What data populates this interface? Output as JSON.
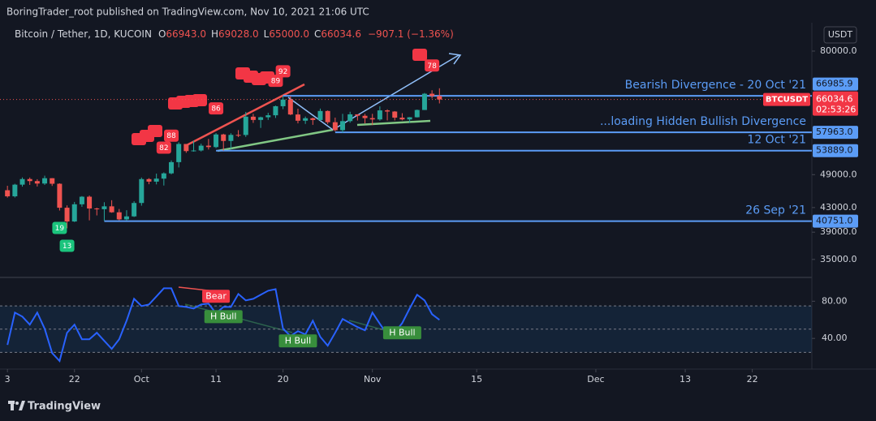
{
  "header": {
    "publisher": "BoringTrader_root published on TradingView.com, Nov 10, 2021 21:06 UTC",
    "brand": "TradingView"
  },
  "chart_data": [
    {
      "type": "candlestick",
      "symbol": "Bitcoin / Tether, 1D, KUCOIN",
      "legend": [
        {
          "key": "O",
          "value": "66943.0"
        },
        {
          "key": "H",
          "value": "69028.0"
        },
        {
          "key": "L",
          "value": "65000.0"
        },
        {
          "key": "C",
          "value": "66034.6"
        }
      ],
      "change": "−907.1 (−1.36%)",
      "currency": "USDT",
      "ticker": "BTCUSDT",
      "last_price": 66034.6,
      "countdown": "02:53:26",
      "x": [
        "2021-09-13",
        "2021-09-14",
        "2021-09-15",
        "2021-09-16",
        "2021-09-17",
        "2021-09-18",
        "2021-09-19",
        "2021-09-20",
        "2021-09-21",
        "2021-09-22",
        "2021-09-23",
        "2021-09-24",
        "2021-09-25",
        "2021-09-26",
        "2021-09-27",
        "2021-09-28",
        "2021-09-29",
        "2021-09-30",
        "2021-10-01",
        "2021-10-02",
        "2021-10-03",
        "2021-10-04",
        "2021-10-05",
        "2021-10-06",
        "2021-10-07",
        "2021-10-08",
        "2021-10-09",
        "2021-10-10",
        "2021-10-11",
        "2021-10-12",
        "2021-10-13",
        "2021-10-14",
        "2021-10-15",
        "2021-10-16",
        "2021-10-17",
        "2021-10-18",
        "2021-10-19",
        "2021-10-20",
        "2021-10-21",
        "2021-10-22",
        "2021-10-23",
        "2021-10-24",
        "2021-10-25",
        "2021-10-26",
        "2021-10-27",
        "2021-10-28",
        "2021-10-29",
        "2021-10-30",
        "2021-10-31",
        "2021-11-01",
        "2021-11-02",
        "2021-11-03",
        "2021-11-04",
        "2021-11-05",
        "2021-11-06",
        "2021-11-07",
        "2021-11-08",
        "2021-11-09",
        "2021-11-10"
      ],
      "open": [
        46060,
        44960,
        47090,
        48150,
        47760,
        47300,
        48310,
        47260,
        42970,
        40690,
        43560,
        44890,
        42840,
        42720,
        43210,
        42200,
        41030,
        41520,
        43790,
        48140,
        47660,
        48230,
        49250,
        51490,
        55340,
        53800,
        53930,
        54970,
        54660,
        57470,
        56010,
        57370,
        57350,
        61670,
        60880,
        61530,
        62010,
        64280,
        66000,
        62210,
        60690,
        61290,
        60860,
        63080,
        60330,
        58460,
        60590,
        62250,
        61890,
        61320,
        61000,
        63230,
        62940,
        61430,
        61000,
        61530,
        63330,
        67550,
        66943
      ],
      "high": [
        46880,
        47250,
        48460,
        48440,
        48120,
        48800,
        48330,
        47340,
        43370,
        43970,
        45000,
        45110,
        42980,
        43920,
        44270,
        42760,
        42550,
        44090,
        48440,
        48320,
        49200,
        49440,
        51850,
        55710,
        55330,
        56060,
        55400,
        56460,
        57780,
        57630,
        57750,
        58470,
        62840,
        62360,
        61680,
        62640,
        64440,
        66930,
        66940,
        63640,
        61710,
        61440,
        63680,
        63220,
        61440,
        62370,
        62880,
        62180,
        62350,
        62370,
        64240,
        63500,
        63050,
        62530,
        61570,
        63440,
        67760,
        68480,
        69028
      ],
      "low": [
        44730,
        44750,
        46720,
        47040,
        46750,
        47040,
        46850,
        42500,
        39600,
        40600,
        43130,
        40870,
        41680,
        40810,
        42120,
        40890,
        40830,
        41420,
        43320,
        47170,
        47140,
        46930,
        49060,
        50420,
        53440,
        53680,
        53710,
        54140,
        54440,
        53900,
        54290,
        56880,
        56920,
        60170,
        58980,
        60880,
        61350,
        63540,
        62050,
        60050,
        59920,
        59700,
        60690,
        59890,
        58200,
        57880,
        60210,
        60740,
        60060,
        59640,
        60700,
        60760,
        60760,
        60780,
        60170,
        61470,
        63330,
        66310,
        65000
      ],
      "close": [
        44960,
        47090,
        48150,
        47760,
        47300,
        48310,
        47260,
        42970,
        40690,
        43560,
        44890,
        42840,
        42720,
        43210,
        42200,
        41030,
        41520,
        43790,
        48140,
        47660,
        48230,
        49250,
        51490,
        55340,
        53800,
        53930,
        54970,
        54660,
        57470,
        56010,
        57370,
        57350,
        61670,
        60880,
        61530,
        62010,
        64280,
        66000,
        62210,
        60690,
        61290,
        60860,
        63080,
        60330,
        58460,
        60590,
        62250,
        61890,
        61320,
        61000,
        63230,
        62940,
        61430,
        61000,
        61530,
        63330,
        67550,
        66940,
        66034.6
      ],
      "xlim": [
        "2021-09-12",
        "2021-12-30"
      ],
      "xticks": [
        {
          "value": "2021-09-13",
          "label": "3"
        },
        {
          "value": "2021-09-22",
          "label": "22"
        },
        {
          "value": "2021-10-01",
          "label": "Oct"
        },
        {
          "value": "2021-10-11",
          "label": "11"
        },
        {
          "value": "2021-10-20",
          "label": "20"
        },
        {
          "value": "2021-11-01",
          "label": "Nov"
        },
        {
          "value": "2021-11-15",
          "label": "15"
        },
        {
          "value": "2021-12-01",
          "label": "Dec"
        },
        {
          "value": "2021-12-13",
          "label": "13"
        },
        {
          "value": "2021-12-22",
          "label": "22"
        }
      ],
      "ylim": [
        32800,
        88960
      ],
      "yticks": [
        {
          "value": 80000,
          "label": "80000.0"
        },
        {
          "value": 49000,
          "label": "49000.0"
        },
        {
          "value": 43000,
          "label": "43000.0"
        },
        {
          "value": 39000,
          "label": "39000.0"
        },
        {
          "value": 35000,
          "label": "35000.0"
        }
      ],
      "log_scale": true,
      "grid": false,
      "up_color": "#26a69a",
      "down_color": "#ef5350",
      "levels": [
        {
          "price": 66985.9,
          "text": "Bearish Divergence - 20 Oct '21",
          "from": "2021-10-20"
        },
        {
          "price": {
            "value": 57963,
            "label": "57963.0"
          },
          "text": "...loading Hidden Bullish Divergence",
          "from": "2021-10-27"
        },
        {
          "price": {
            "value": 53889,
            "label": "53889.0"
          },
          "text": "12 Oct '21",
          "from": "2021-10-11"
        },
        {
          "price": {
            "value": 40751,
            "label": "40751.0"
          },
          "text": "26 Sep '21",
          "from": "2021-09-26"
        }
      ],
      "level_color": "#5b9cf6",
      "signals": [
        {
          "label": "82",
          "date": "2021-10-04",
          "side": "above",
          "color": "#f23645"
        },
        {
          "label": "88",
          "date": "2021-10-05",
          "side": "above",
          "color": "#f23645"
        },
        {
          "label": "86",
          "date": "2021-10-11",
          "side": "above",
          "color": "#f23645"
        },
        {
          "label": "89",
          "date": "2021-10-19",
          "side": "above",
          "color": "#f23645"
        },
        {
          "label": "92",
          "date": "2021-10-20",
          "side": "above",
          "color": "#f23645"
        },
        {
          "label": "78",
          "date": "2021-11-09",
          "side": "above",
          "color": "#f23645"
        },
        {
          "label": "19",
          "date": "2021-09-20",
          "side": "below",
          "color": "#1bc47d"
        },
        {
          "label": "13",
          "date": "2021-09-21",
          "side": "below",
          "color": "#1bc47d"
        }
      ]
    },
    {
      "type": "line",
      "series": [
        {
          "color": "#2962ff",
          "values": [
            33,
            67.8,
            63.5,
            54.8,
            67.8,
            50.4,
            24.3,
            15.7,
            46.1,
            54.8,
            39.1,
            39.1,
            46.1,
            37.4,
            28.7,
            39.1,
            59.1,
            82.6,
            74.8,
            76.5,
            85.2,
            93.9,
            93.9,
            74.8,
            73.9,
            72.2,
            76.5,
            77.4,
            67,
            73.9,
            73.9,
            87.8,
            80.9,
            82.6,
            87,
            91.3,
            93,
            50.4,
            42.6,
            47.8,
            44.3,
            59.1,
            41.7,
            32.2,
            46.1,
            60.9,
            56.5,
            52.2,
            48.7,
            67.8,
            55.7,
            44.3,
            46.1,
            56.5,
            72.2,
            87,
            80.9,
            66.1,
            60
          ]
        }
      ],
      "ylim": [
        7,
        103
      ],
      "yticks": [
        {
          "value": 80,
          "label": "80.00"
        },
        {
          "value": 40,
          "label": "40.00"
        }
      ],
      "bands": [
        75,
        50,
        25
      ],
      "signals": [
        {
          "label": "Bear",
          "date": "2021-10-11",
          "side": "above",
          "color": "#f23645"
        },
        {
          "label": "H Bull",
          "date": "2021-10-12",
          "side": "below",
          "color": "#388e3c"
        },
        {
          "label": "H Bull",
          "date": "2021-10-22",
          "side": "below",
          "color": "#388e3c"
        },
        {
          "label": "H Bull",
          "date": "2021-11-05",
          "side": "below",
          "color": "#388e3c"
        }
      ]
    }
  ]
}
